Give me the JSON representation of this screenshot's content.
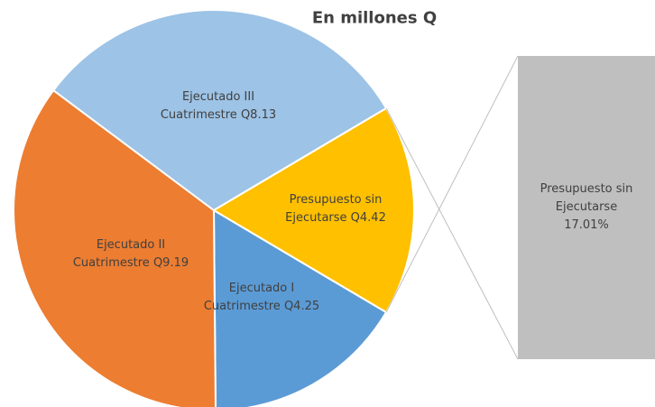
{
  "chart_data": {
    "type": "pie-of-bar",
    "subtitle": "En millones Q",
    "categories": [
      "Ejecutado I Cuatrimestre",
      "Ejecutado II Cuatrimestre",
      "Ejecutado III Cuatrimestre",
      "Presupuesto sin Ejecutarse"
    ],
    "values": [
      4.25,
      9.19,
      8.13,
      4.42
    ],
    "value_labels": [
      "Q4.25",
      "Q9.19",
      "Q8.13",
      "Q4.42"
    ],
    "colors": [
      "#5b9bd5",
      "#ed7d31",
      "#9dc3e6",
      "#ffc000"
    ],
    "bar": {
      "label": "Presupuesto sin Ejecutarse",
      "value": 17.01,
      "value_label": "17.01%",
      "color": "#bfbfbf"
    }
  }
}
